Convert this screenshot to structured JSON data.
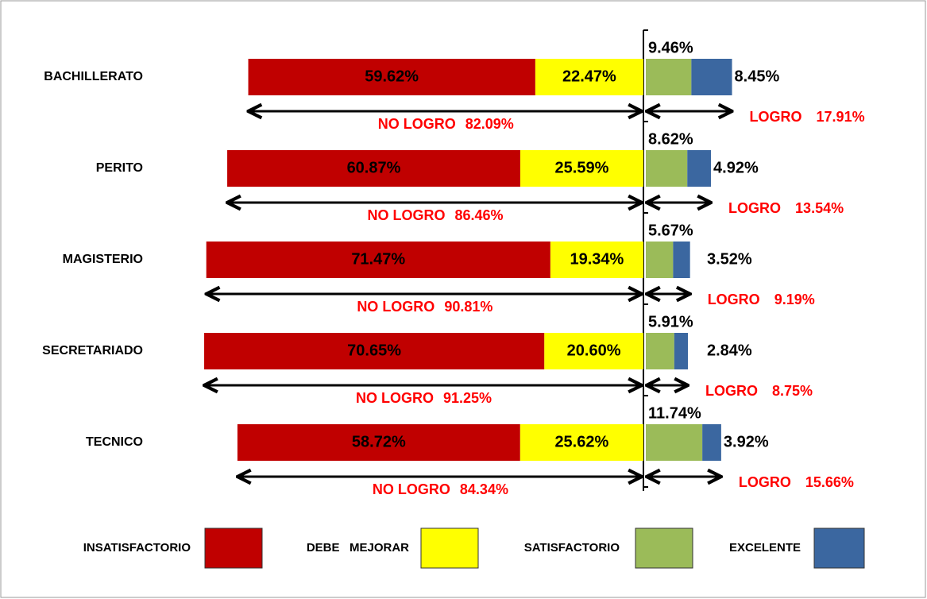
{
  "chart_data": {
    "type": "diverging_bar",
    "categories": [
      "BACHILLERATO",
      "PERITO",
      "MAGISTERIO",
      "SECRETARIADO",
      "TECNICO"
    ],
    "series": [
      {
        "name": "INSATISFACTORIO",
        "color": "#c00000",
        "side": "left",
        "values": [
          59.62,
          60.87,
          71.47,
          70.65,
          58.72
        ],
        "value_labels": [
          "59.62%",
          "60.87%",
          "71.47%",
          "70.65%",
          "58.72%"
        ]
      },
      {
        "name": "DEBE   MEJORAR",
        "color": "#ffff00",
        "side": "left",
        "values": [
          22.47,
          25.59,
          19.34,
          20.6,
          25.62
        ],
        "value_labels": [
          "22.47%",
          "25.59%",
          "19.34%",
          "20.60%",
          "25.62%"
        ]
      },
      {
        "name": "SATISFACTORIO",
        "color": "#9bbb59",
        "side": "right",
        "values": [
          9.46,
          8.62,
          5.67,
          5.91,
          11.74
        ],
        "value_labels": [
          "9.46%",
          "8.62%",
          "5.67%",
          "5.91%",
          "11.74%"
        ]
      },
      {
        "name": "EXCELENTE",
        "color": "#3b67a0",
        "side": "right",
        "values": [
          8.45,
          4.92,
          3.52,
          2.84,
          3.92
        ],
        "value_labels": [
          "8.45%",
          "4.92%",
          "3.52%",
          "2.84%",
          "3.92%"
        ]
      }
    ],
    "no_logro": {
      "label": "NO LOGRO",
      "values": [
        82.09,
        86.46,
        90.81,
        91.25,
        84.34
      ],
      "value_labels": [
        "82.09%",
        "86.46%",
        "90.81%",
        "91.25%",
        "84.34%"
      ]
    },
    "logro": {
      "label": "LOGRO",
      "values": [
        17.91,
        13.54,
        9.19,
        8.75,
        15.66
      ],
      "value_labels": [
        "17.91%",
        "13.54%",
        "9.19%",
        "8.75%",
        "15.66%"
      ]
    }
  }
}
